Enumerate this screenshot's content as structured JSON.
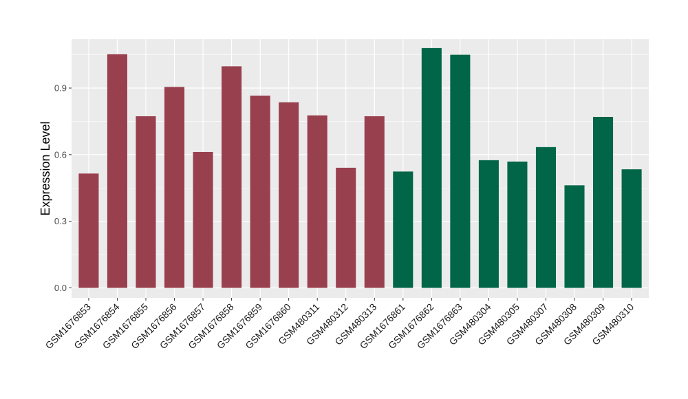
{
  "chart_data": {
    "type": "bar",
    "title": "",
    "xlabel": "",
    "ylabel": "Expression Level",
    "ylim": [
      -0.045,
      1.12
    ],
    "yticks": [
      0.0,
      0.3,
      0.6,
      0.9
    ],
    "ytick_labels": [
      "0.0",
      "0.3",
      "0.6",
      "0.9"
    ],
    "grid": true,
    "panel_background": "#ebebeb",
    "grid_color": "#ffffff",
    "categories": [
      "GSM1676853",
      "GSM1676854",
      "GSM1676855",
      "GSM1676856",
      "GSM1676857",
      "GSM1676858",
      "GSM1676859",
      "GSM1676860",
      "GSM480311",
      "GSM480312",
      "GSM480313",
      "GSM1676861",
      "GSM1676862",
      "GSM1676863",
      "GSM480304",
      "GSM480305",
      "GSM480307",
      "GSM480308",
      "GSM480309",
      "GSM480310"
    ],
    "values": [
      0.515,
      1.052,
      0.773,
      0.905,
      0.612,
      0.998,
      0.866,
      0.836,
      0.777,
      0.541,
      0.773,
      0.524,
      1.08,
      1.05,
      0.575,
      0.569,
      0.634,
      0.462,
      0.77,
      0.534
    ],
    "bar_colors": [
      "#99404f",
      "#99404f",
      "#99404f",
      "#99404f",
      "#99404f",
      "#99404f",
      "#99404f",
      "#99404f",
      "#99404f",
      "#99404f",
      "#99404f",
      "#006647",
      "#006647",
      "#006647",
      "#006647",
      "#006647",
      "#006647",
      "#006647",
      "#006647",
      "#006647"
    ]
  }
}
